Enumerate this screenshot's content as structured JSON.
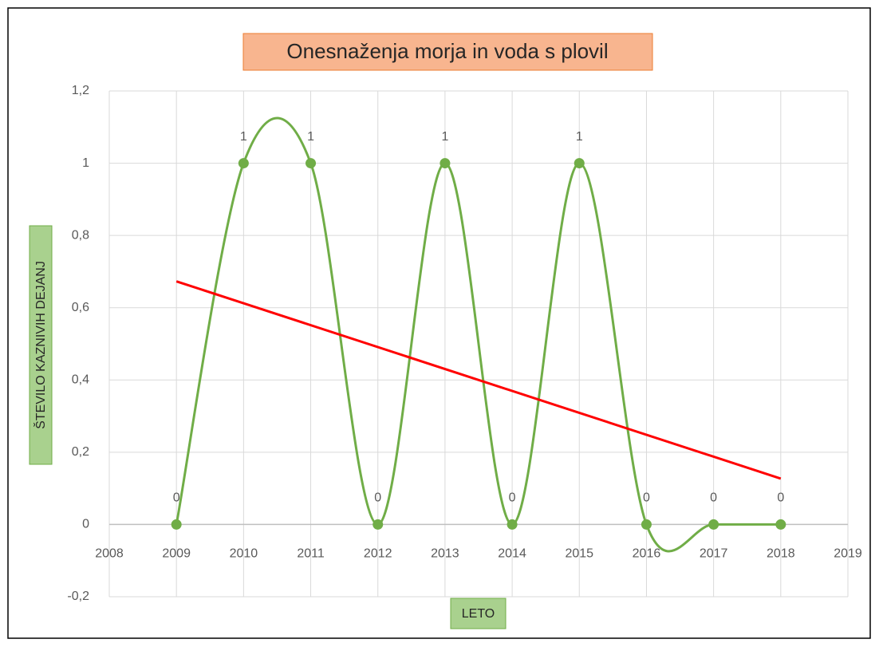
{
  "chart_data": {
    "type": "scatter",
    "title": "Onesnaženja morja in voda s plovil",
    "x_label": "LETO",
    "y_label": "ŠTEVILO KAZNIVIH DEJANJ",
    "x": [
      2009,
      2010,
      2011,
      2012,
      2013,
      2014,
      2015,
      2016,
      2017,
      2018
    ],
    "series": [
      {
        "name": "Onesnaženja morja in voda s plovil",
        "color": "#70ad47",
        "values": [
          0,
          1,
          1,
          0,
          1,
          0,
          1,
          0,
          0,
          0
        ]
      }
    ],
    "trend": {
      "x": [
        2009,
        2018
      ],
      "values": [
        0.673,
        0.127
      ],
      "color": "#ff0000"
    },
    "smooth": true,
    "xlim": [
      2008,
      2019
    ],
    "xticks": [
      2008,
      2009,
      2010,
      2011,
      2012,
      2013,
      2014,
      2015,
      2016,
      2017,
      2018,
      2019
    ],
    "ylim": [
      -0.2,
      1.2
    ],
    "yticks": [
      {
        "value": -0.2,
        "label": "-0,2"
      },
      0,
      {
        "value": 0.2,
        "label": "0,2"
      },
      {
        "value": 0.4,
        "label": "0,4"
      },
      {
        "value": 0.6,
        "label": "0,6"
      },
      {
        "value": 0.8,
        "label": "0,8"
      },
      1,
      {
        "value": 1.2,
        "label": "1,2"
      }
    ],
    "grid": true
  }
}
